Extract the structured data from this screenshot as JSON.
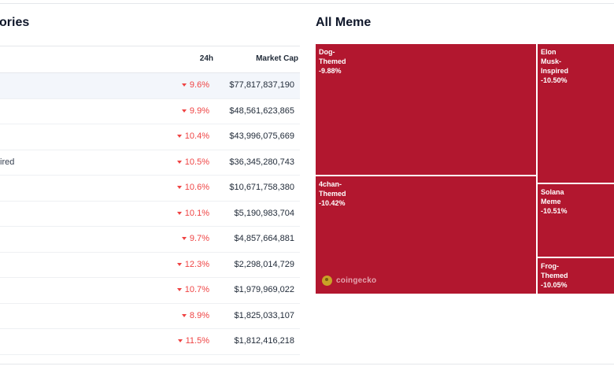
{
  "left": {
    "title": "ories",
    "header": {
      "name": "",
      "change": "24h",
      "market_cap": "Market Cap"
    },
    "rows": [
      {
        "name": "",
        "change": "9.6%",
        "market_cap": "$77,817,837,190"
      },
      {
        "name": "",
        "change": "9.9%",
        "market_cap": "$48,561,623,865"
      },
      {
        "name": "",
        "change": "10.4%",
        "market_cap": "$43,996,075,669"
      },
      {
        "name": "ired",
        "change": "10.5%",
        "market_cap": "$36,345,280,743"
      },
      {
        "name": "",
        "change": "10.6%",
        "market_cap": "$10,671,758,380"
      },
      {
        "name": "",
        "change": "10.1%",
        "market_cap": "$5,190,983,704"
      },
      {
        "name": "",
        "change": "9.7%",
        "market_cap": "$4,857,664,881"
      },
      {
        "name": "",
        "change": "12.3%",
        "market_cap": "$2,298,014,729"
      },
      {
        "name": "",
        "change": "10.7%",
        "market_cap": "$1,979,969,022"
      },
      {
        "name": "",
        "change": "8.9%",
        "market_cap": "$1,825,033,107"
      },
      {
        "name": "",
        "change": "11.5%",
        "market_cap": "$1,812,416,218"
      }
    ],
    "highlight_color": "#f3f6fb",
    "negative_color": "#ef4444",
    "change_icon": "caret-down-icon"
  },
  "right": {
    "title": "All Meme",
    "tiles": [
      {
        "id": "dog",
        "name": "Dog-\nThemed",
        "change": "-9.88%"
      },
      {
        "id": "elon",
        "name": "Elon\nMusk-\nInspired",
        "change": "-10.50%"
      },
      {
        "id": "4chan",
        "name": "4chan-\nThemed",
        "change": "-10.42%"
      },
      {
        "id": "solana",
        "name": "Solana\nMeme",
        "change": "-10.51%"
      },
      {
        "id": "frog",
        "name": "Frog-\nThemed",
        "change": "-10.05%"
      }
    ],
    "tile_color": "#b2172f",
    "watermark": {
      "text": "coingecko",
      "icon": "coingecko-logo-icon"
    }
  }
}
